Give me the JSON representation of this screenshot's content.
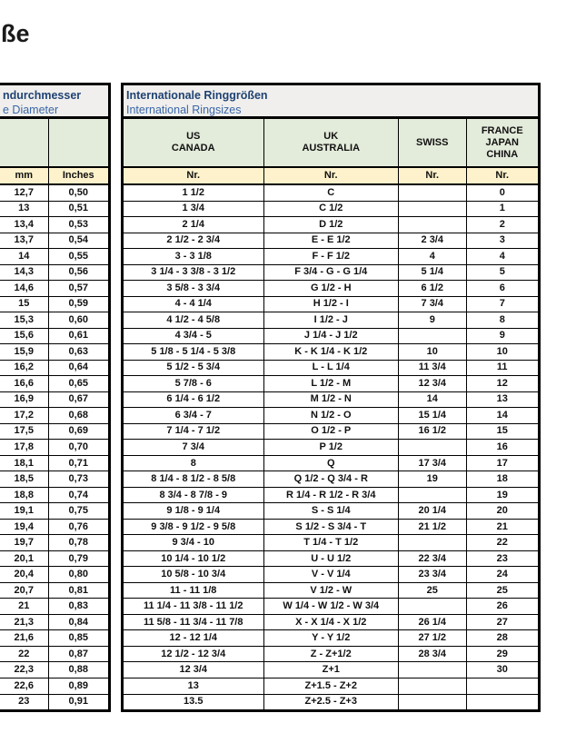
{
  "page": {
    "title_fragment": "ße"
  },
  "colors": {
    "header_green": "#e3ebda",
    "header_yellow": "#fdf2cb",
    "title_block_bg": "#f0efed",
    "title_dark_blue": "#1f4273",
    "title_blue": "#3a66a8",
    "border": "#000000"
  },
  "left_table": {
    "title": "ndurchmesser",
    "subtitle": "e Diameter",
    "columns": [
      "mm",
      "Inches"
    ],
    "rows": [
      [
        "12,7",
        "0,50"
      ],
      [
        "13",
        "0,51"
      ],
      [
        "13,4",
        "0,53"
      ],
      [
        "13,7",
        "0,54"
      ],
      [
        "14",
        "0,55"
      ],
      [
        "14,3",
        "0,56"
      ],
      [
        "14,6",
        "0,57"
      ],
      [
        "15",
        "0,59"
      ],
      [
        "15,3",
        "0,60"
      ],
      [
        "15,6",
        "0,61"
      ],
      [
        "15,9",
        "0,63"
      ],
      [
        "16,2",
        "0,64"
      ],
      [
        "16,6",
        "0,65"
      ],
      [
        "16,9",
        "0,67"
      ],
      [
        "17,2",
        "0,68"
      ],
      [
        "17,5",
        "0,69"
      ],
      [
        "17,8",
        "0,70"
      ],
      [
        "18,1",
        "0,71"
      ],
      [
        "18,5",
        "0,73"
      ],
      [
        "18,8",
        "0,74"
      ],
      [
        "19,1",
        "0,75"
      ],
      [
        "19,4",
        "0,76"
      ],
      [
        "19,7",
        "0,78"
      ],
      [
        "20,1",
        "0,79"
      ],
      [
        "20,4",
        "0,80"
      ],
      [
        "20,7",
        "0,81"
      ],
      [
        "21",
        "0,83"
      ],
      [
        "21,3",
        "0,84"
      ],
      [
        "21,6",
        "0,85"
      ],
      [
        "22",
        "0,87"
      ],
      [
        "22,3",
        "0,88"
      ],
      [
        "22,6",
        "0,89"
      ],
      [
        "23",
        "0,91"
      ]
    ]
  },
  "right_table": {
    "title": "Internationale Ringgrößen",
    "subtitle": "International Ringsizes",
    "nr_label": "Nr.",
    "column_groups": [
      {
        "lines": [
          "US",
          "CANADA"
        ]
      },
      {
        "lines": [
          "UK",
          "AUSTRALIA"
        ]
      },
      {
        "lines": [
          "SWISS"
        ]
      },
      {
        "lines": [
          "FRANCE",
          "JAPAN",
          "CHINA"
        ]
      }
    ],
    "rows": [
      [
        "1 1/2",
        "C",
        "",
        "0"
      ],
      [
        "1 3/4",
        "C 1/2",
        "",
        "1"
      ],
      [
        "2 1/4",
        "D 1/2",
        "",
        "2"
      ],
      [
        "2 1/2 - 2 3/4",
        "E - E 1/2",
        "2 3/4",
        "3"
      ],
      [
        "3 - 3 1/8",
        "F - F 1/2",
        "4",
        "4"
      ],
      [
        "3 1/4 - 3 3/8 - 3 1/2",
        "F 3/4 - G - G 1/4",
        "5 1/4",
        "5"
      ],
      [
        "3 5/8 - 3 3/4",
        "G 1/2 - H",
        "6 1/2",
        "6"
      ],
      [
        "4 - 4 1/4",
        "H 1/2 - I",
        "7 3/4",
        "7"
      ],
      [
        "4 1/2 - 4 5/8",
        "I 1/2 - J",
        "9",
        "8"
      ],
      [
        "4 3/4 - 5",
        "J 1/4 - J 1/2",
        "",
        "9"
      ],
      [
        "5 1/8 - 5 1/4 - 5 3/8",
        "K - K 1/4 - K 1/2",
        "10",
        "10"
      ],
      [
        "5 1/2 - 5 3/4",
        "L - L 1/4",
        "11 3/4",
        "11"
      ],
      [
        "5 7/8 - 6",
        "L 1/2 - M",
        "12 3/4",
        "12"
      ],
      [
        "6 1/4 - 6 1/2",
        "M 1/2 - N",
        "14",
        "13"
      ],
      [
        "6 3/4 - 7",
        "N 1/2 - O",
        "15 1/4",
        "14"
      ],
      [
        "7 1/4 - 7 1/2",
        "O 1/2 - P",
        "16 1/2",
        "15"
      ],
      [
        "7 3/4",
        "P 1/2",
        "",
        "16"
      ],
      [
        "8",
        "Q",
        "17 3/4",
        "17"
      ],
      [
        "8 1/4 - 8 1/2 - 8 5/8",
        "Q 1/2 - Q 3/4 - R",
        "19",
        "18"
      ],
      [
        "8 3/4 - 8 7/8 - 9",
        "R 1/4 - R 1/2 - R 3/4",
        "",
        "19"
      ],
      [
        "9 1/8 - 9 1/4",
        "S - S 1/4",
        "20 1/4",
        "20"
      ],
      [
        "9 3/8 - 9 1/2 - 9 5/8",
        "S 1/2 - S 3/4 - T",
        "21 1/2",
        "21"
      ],
      [
        "9 3/4 - 10",
        "T 1/4 - T 1/2",
        "",
        "22"
      ],
      [
        "10 1/4 - 10 1/2",
        "U - U 1/2",
        "22 3/4",
        "23"
      ],
      [
        "10 5/8 - 10 3/4",
        "V - V 1/4",
        "23 3/4",
        "24"
      ],
      [
        "11 - 11 1/8",
        "V 1/2 - W",
        "25",
        "25"
      ],
      [
        "11 1/4 - 11 3/8 - 11 1/2",
        "W 1/4 - W 1/2 - W 3/4",
        "",
        "26"
      ],
      [
        "11 5/8 - 11 3/4 - 11 7/8",
        "X - X 1/4 - X 1/2",
        "26 1/4",
        "27"
      ],
      [
        "12 - 12 1/4",
        "Y - Y 1/2",
        "27 1/2",
        "28"
      ],
      [
        "12 1/2 - 12 3/4",
        "Z - Z+1/2",
        "28 3/4",
        "29"
      ],
      [
        "12 3/4",
        "Z+1",
        "",
        "30"
      ],
      [
        "13",
        "Z+1.5 - Z+2",
        "",
        ""
      ],
      [
        "13.5",
        "Z+2.5 - Z+3",
        "",
        ""
      ]
    ]
  }
}
